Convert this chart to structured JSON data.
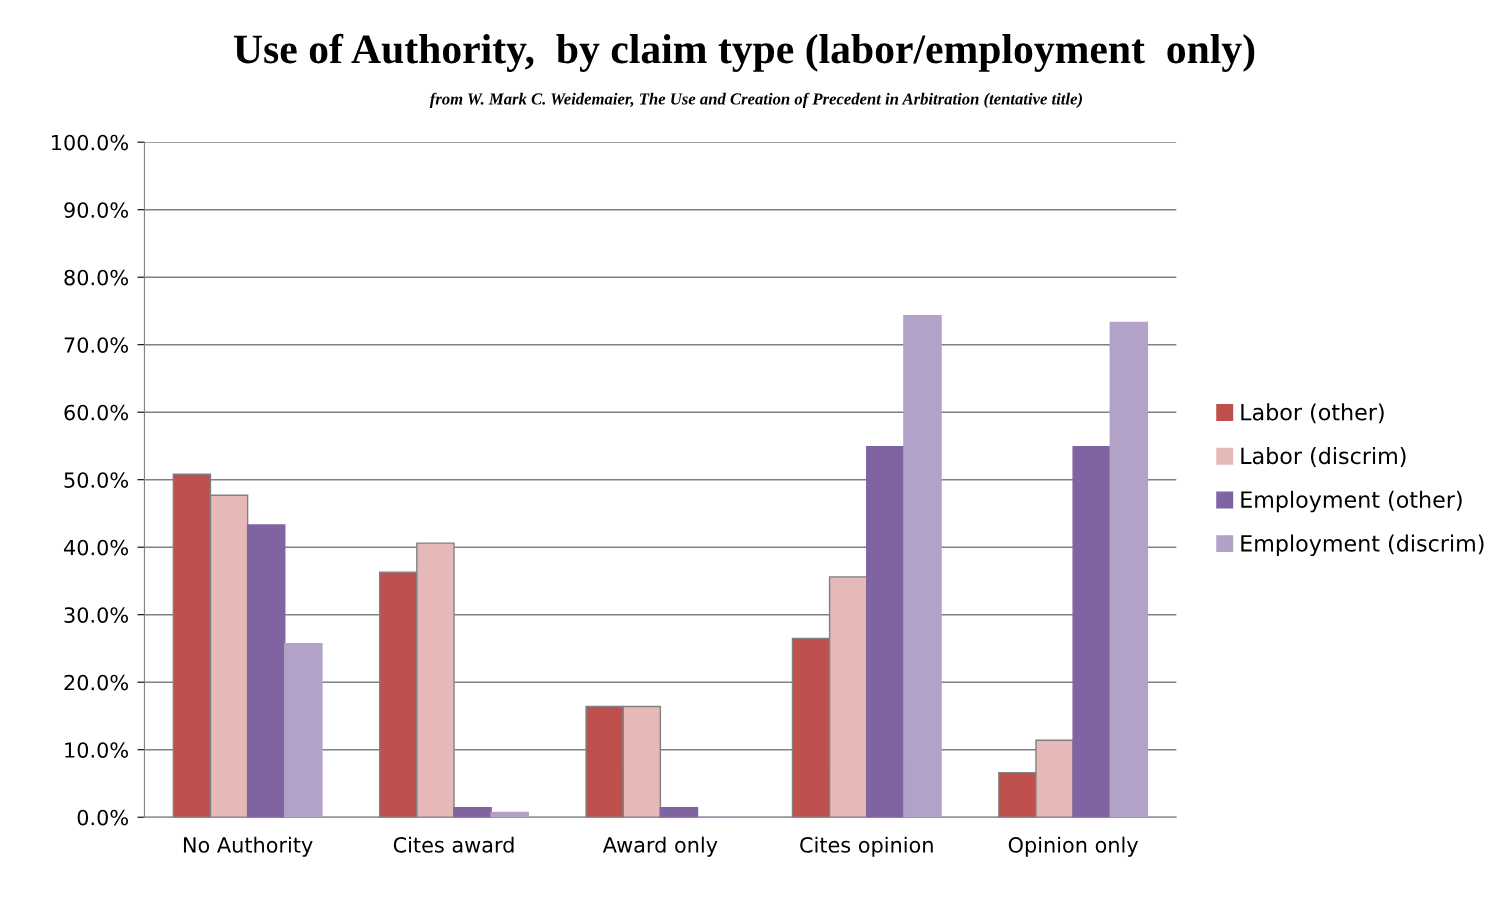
{
  "chart_data": {
    "type": "bar",
    "title": "Use of Authority,  by claim type (labor/employment  only)",
    "subtitle": "from W. Mark C. Weidemaier, The Use and Creation of Precedent in Arbitration (tentative title)",
    "categories": [
      "No Authority",
      "Cites award",
      "Award only",
      "Cites opinion",
      "Opinion only"
    ],
    "series": [
      {
        "name": "Labor (other)",
        "color": "#c0504d",
        "values": [
          50.8,
          36.3,
          16.4,
          26.5,
          6.6
        ]
      },
      {
        "name": "Labor (discrim)",
        "color": "#e6b9b8",
        "values": [
          47.7,
          40.6,
          16.4,
          35.6,
          11.4
        ]
      },
      {
        "name": "Employment (other)",
        "color": "#8064a2",
        "values": [
          43.3,
          1.4,
          1.4,
          54.9,
          54.9
        ]
      },
      {
        "name": "Employment (discrim)",
        "color": "#b3a2c7",
        "values": [
          25.7,
          0.7,
          0,
          74.3,
          73.3
        ]
      }
    ],
    "ylim": [
      0,
      100
    ],
    "yticks": [
      {
        "value": 0,
        "label": "0.0%"
      },
      {
        "value": 10,
        "label": "10.0%"
      },
      {
        "value": 20,
        "label": "20.0%"
      },
      {
        "value": 30,
        "label": "30.0%"
      },
      {
        "value": 40,
        "label": "40.0%"
      },
      {
        "value": 50,
        "label": "50.0%"
      },
      {
        "value": 60,
        "label": "60.0%"
      },
      {
        "value": 70,
        "label": "70.0%"
      },
      {
        "value": 80,
        "label": "80.0%"
      },
      {
        "value": 90,
        "label": "90.0%"
      },
      {
        "value": 100,
        "label": "100.0%"
      }
    ],
    "grid": "y",
    "legend": "right"
  }
}
